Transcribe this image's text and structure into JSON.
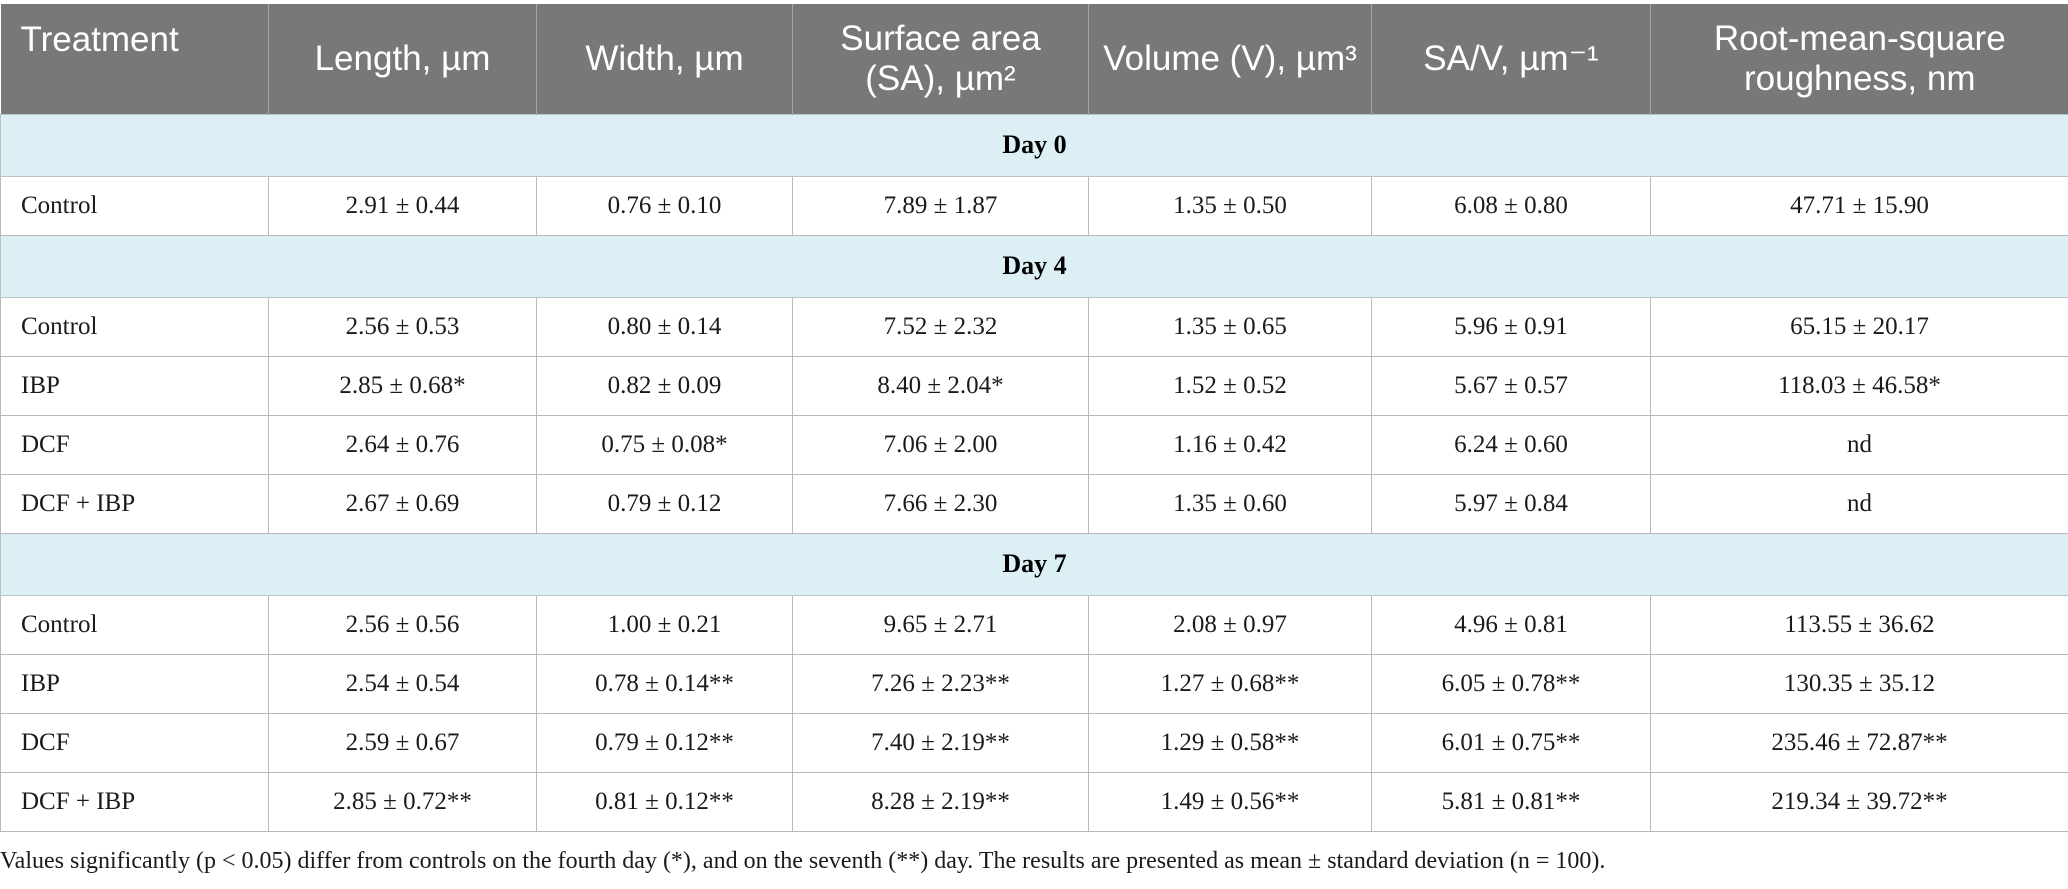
{
  "headers": [
    "Treatment",
    "Length, µm",
    "Width, µm",
    "Surface area (SA), µm²",
    "Volume (V), µm³",
    "SA/V, µm⁻¹",
    "Root-mean-square roughness, nm"
  ],
  "groups": [
    {
      "label": "Day 0",
      "rows": [
        [
          "Control",
          "2.91 ± 0.44",
          "0.76 ± 0.10",
          "7.89 ± 1.87",
          "1.35 ± 0.50",
          "6.08 ± 0.80",
          "47.71 ± 15.90"
        ]
      ]
    },
    {
      "label": "Day 4",
      "rows": [
        [
          "Control",
          "2.56 ± 0.53",
          "0.80 ± 0.14",
          "7.52 ± 2.32",
          "1.35 ± 0.65",
          "5.96 ± 0.91",
          "65.15 ± 20.17"
        ],
        [
          "IBP",
          "2.85 ± 0.68*",
          "0.82 ± 0.09",
          "8.40 ± 2.04*",
          "1.52 ± 0.52",
          "5.67 ± 0.57",
          "118.03 ± 46.58*"
        ],
        [
          "DCF",
          "2.64 ± 0.76",
          "0.75 ± 0.08*",
          "7.06 ± 2.00",
          "1.16 ± 0.42",
          "6.24 ± 0.60",
          "nd"
        ],
        [
          "DCF + IBP",
          "2.67 ± 0.69",
          "0.79 ± 0.12",
          "7.66 ± 2.30",
          "1.35 ± 0.60",
          "5.97 ± 0.84",
          "nd"
        ]
      ]
    },
    {
      "label": "Day 7",
      "rows": [
        [
          "Control",
          "2.56 ± 0.56",
          "1.00 ± 0.21",
          "9.65 ± 2.71",
          "2.08 ± 0.97",
          "4.96 ± 0.81",
          "113.55 ± 36.62"
        ],
        [
          "IBP",
          "2.54 ± 0.54",
          "0.78 ± 0.14**",
          "7.26 ± 2.23**",
          "1.27 ± 0.68**",
          "6.05 ± 0.78**",
          "130.35 ± 35.12"
        ],
        [
          "DCF",
          "2.59 ± 0.67",
          "0.79 ± 0.12**",
          "7.40 ± 2.19**",
          "1.29 ± 0.58**",
          "6.01 ± 0.75**",
          "235.46 ± 72.87**"
        ],
        [
          "DCF + IBP",
          "2.85 ± 0.72**",
          "0.81 ± 0.12**",
          "8.28 ± 2.19**",
          "1.49 ± 0.56**",
          "5.81 ± 0.81**",
          "219.34 ± 39.72**"
        ]
      ]
    }
  ],
  "footnote": "Values significantly (p < 0.05) differ from controls on the fourth day (*), and on the seventh (**) day. The results are presented as mean ± standard deviation (n = 100).",
  "colors": {
    "header_bg": "#777877",
    "group_bg": "#dbeff5"
  }
}
